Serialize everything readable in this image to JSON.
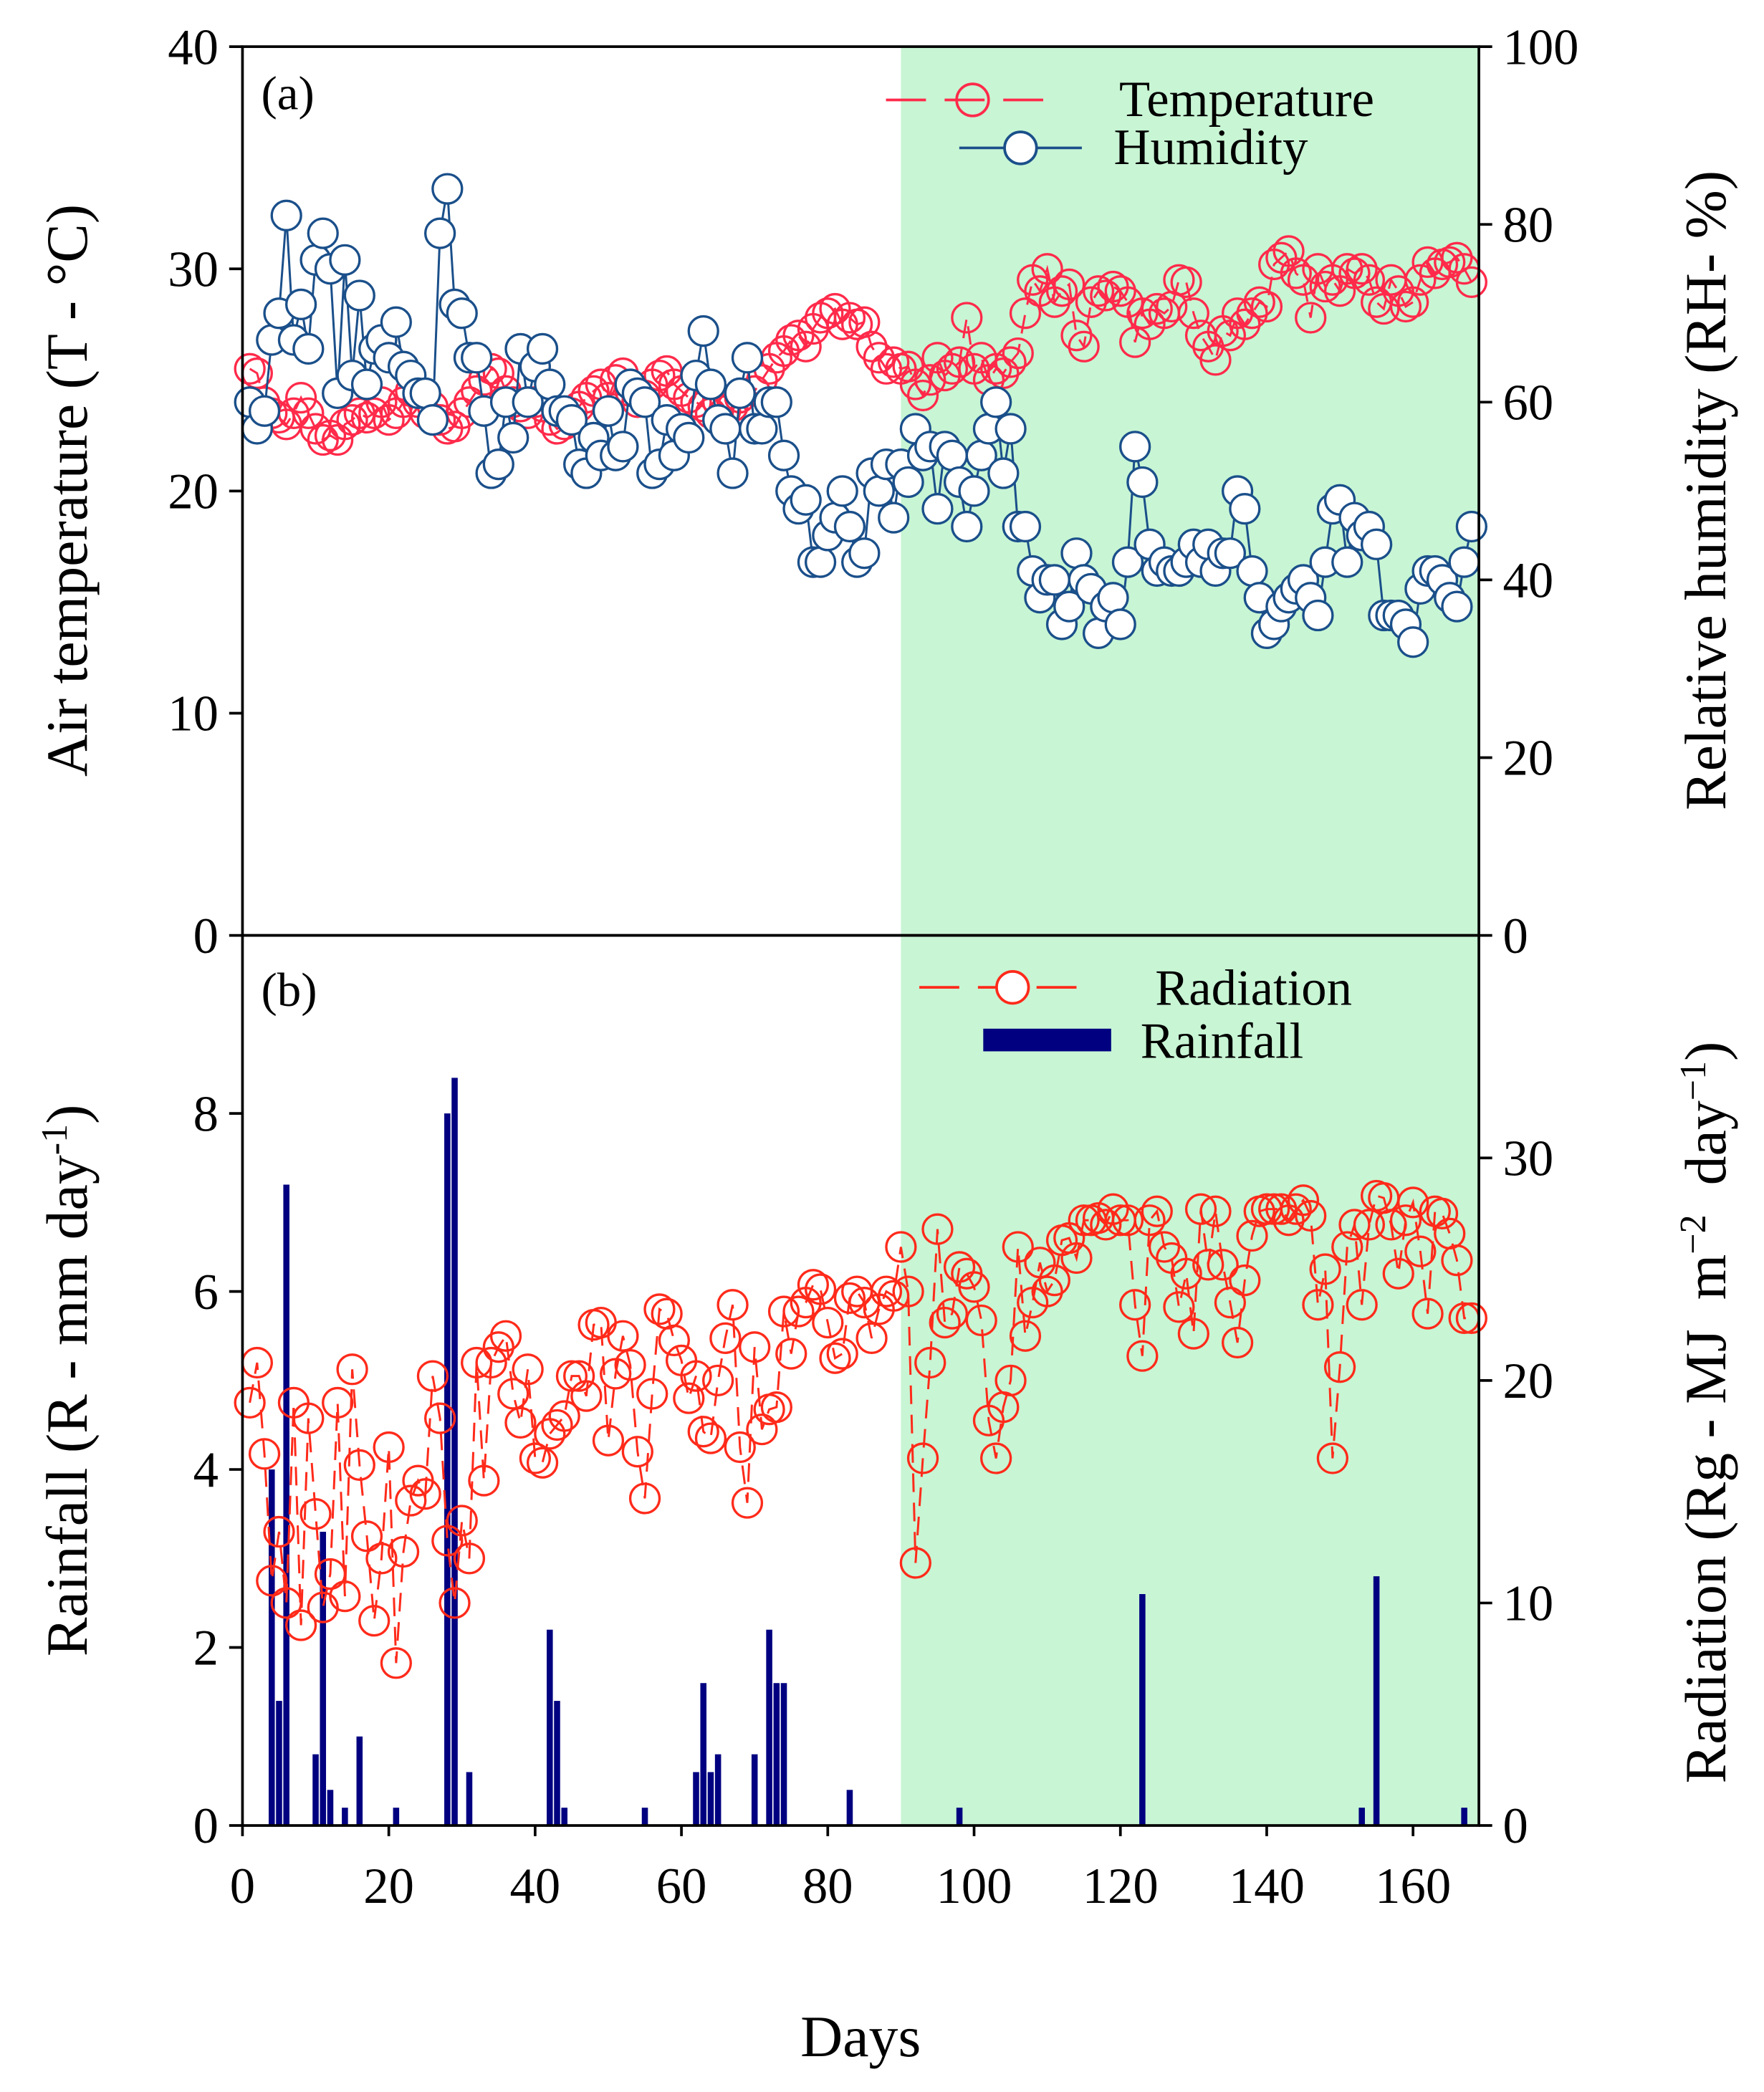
{
  "chart_data": [
    {
      "type": "line",
      "panel_label": "(a)",
      "xlabel": "Days",
      "ylabel_left": "Air temperature (T - °C)",
      "ylabel_right": "Relative humidity (RH- %)",
      "xlim": [
        0,
        169
      ],
      "ylim_left": [
        0,
        40
      ],
      "ylim_right": [
        0,
        100
      ],
      "xticks": [
        "0",
        "20",
        "40",
        "60",
        "80",
        "100",
        "120",
        "140",
        "160"
      ],
      "yticks_left": [
        "0",
        "10",
        "20",
        "30",
        "40"
      ],
      "yticks_right": [
        "0",
        "20",
        "40",
        "60",
        "80",
        "100"
      ],
      "shaded_region_days": [
        90,
        169
      ],
      "legend_position": "top-right",
      "series": [
        {
          "name": "Temperature",
          "axis": "left",
          "color": "#ff2a4a",
          "style": "dashed-open-circle",
          "values": [
            25.5,
            25.3,
            24,
            23.5,
            23.3,
            23,
            23.5,
            24.2,
            23.5,
            22.8,
            22.3,
            22.5,
            22.3,
            23,
            23.2,
            23.5,
            23.3,
            23.5,
            24,
            23.2,
            23.5,
            24,
            24.5,
            24,
            23.5,
            23.8,
            23.2,
            22.8,
            22.9,
            23.5,
            24,
            24.5,
            25,
            25.5,
            25.3,
            24.5,
            24,
            23.8,
            23.5,
            24,
            23.8,
            23.2,
            22.8,
            23,
            23.5,
            23.8,
            24.2,
            24.5,
            24.8,
            24.2,
            25,
            25.3,
            24.5,
            24,
            24.3,
            24.8,
            25.2,
            25.4,
            24.8,
            24.5,
            24.2,
            24,
            23.8,
            23.5,
            24,
            23.6,
            23.8,
            24.2,
            23.5,
            24.5,
            25,
            25.5,
            26,
            26.3,
            26.8,
            27,
            26.5,
            27.3,
            27.8,
            28,
            28.2,
            27.5,
            27.8,
            27.5,
            27.6,
            26.5,
            26,
            25.5,
            25.8,
            25.5,
            25.6,
            24.8,
            24.3,
            25,
            26,
            25.2,
            25.5,
            25.8,
            27.8,
            25.5,
            26,
            25,
            25.5,
            25.3,
            25.8,
            26.2,
            28,
            29.5,
            29,
            30,
            28.5,
            29,
            29.3,
            27,
            26.5,
            28.5,
            29,
            28.8,
            29.2,
            29,
            28.5,
            26.7,
            28,
            27.5,
            28.2,
            28,
            28.3,
            29.5,
            29.4,
            28,
            27,
            26.5,
            25.9,
            27.2,
            27,
            28,
            27.5,
            28,
            28.5,
            28.3,
            30.2,
            30.5,
            30.8,
            29.8,
            29.5,
            27.8,
            30,
            29.2,
            29.5,
            29,
            30,
            29.8,
            30,
            29.5,
            28.5,
            28.2,
            29.5,
            29,
            28.3,
            28.5,
            29.5,
            30.3,
            29.8,
            30.2,
            30.3,
            30.5,
            30,
            29.4
          ]
        },
        {
          "name": "Humidity",
          "axis": "right",
          "color": "#1a4f8a",
          "style": "solid-open-circle",
          "values": [
            60,
            57,
            59,
            67,
            70,
            81,
            67,
            71,
            66,
            76,
            79,
            75,
            61,
            76,
            63,
            72,
            62,
            66,
            67,
            65,
            69,
            64,
            63,
            61,
            61,
            58,
            79,
            84,
            71,
            70,
            65,
            65,
            59,
            52,
            53,
            60,
            56,
            66,
            60,
            64,
            66,
            62,
            59,
            59,
            58,
            53,
            52,
            56,
            54,
            59,
            54,
            55,
            62,
            61,
            60,
            52,
            53,
            58,
            54,
            57,
            56,
            63,
            68,
            62,
            58,
            57,
            52,
            61,
            65,
            57,
            57,
            60,
            60,
            54,
            50,
            48,
            49,
            42,
            42,
            45,
            47,
            50,
            46,
            42,
            43,
            52,
            50,
            53,
            47,
            53,
            51,
            57,
            54,
            55,
            48,
            55,
            54,
            51,
            46,
            50,
            54,
            57,
            60,
            52,
            57,
            46,
            46,
            41,
            38,
            40,
            40,
            35,
            37,
            43,
            40,
            39,
            34,
            37,
            38,
            35,
            42,
            55,
            51,
            44,
            41,
            42,
            41,
            41,
            42,
            44,
            42,
            44,
            41,
            43,
            43,
            50,
            48,
            41,
            38,
            34,
            35,
            37,
            38,
            39,
            40,
            38,
            36,
            42,
            48,
            49,
            42,
            47,
            45,
            46,
            44,
            36,
            36,
            36,
            35,
            33,
            39,
            41,
            41,
            40,
            38,
            37,
            42,
            46
          ]
        }
      ]
    },
    {
      "type": "bar+line",
      "panel_label": "(b)",
      "xlabel": "Days",
      "ylabel_left": {
        "main": "Rainfall (R - mm day",
        "sup": "-1",
        "close": ")"
      },
      "ylabel_right": {
        "main": "Radiation (Rg - MJ  m",
        "sup1": "−2",
        "mid": "  day",
        "sup2": "−1",
        "close": ")"
      },
      "xlim": [
        0,
        169
      ],
      "ylim_left": [
        0,
        10
      ],
      "ylim_right": [
        0,
        40
      ],
      "xticks": [
        "0",
        "20",
        "40",
        "60",
        "80",
        "100",
        "120",
        "140",
        "160"
      ],
      "yticks_left": [
        "0",
        "2",
        "4",
        "6",
        "8"
      ],
      "yticks_right": [
        "0",
        "10",
        "20",
        "30"
      ],
      "shaded_region_days": [
        90,
        169
      ],
      "legend_position": "top-right",
      "rainfall": {
        "name": "Rainfall",
        "color": "#000080",
        "days": [
          4,
          5,
          6,
          10,
          11,
          12,
          14,
          16,
          21,
          28,
          29,
          31,
          42,
          43,
          44,
          55,
          62,
          63,
          64,
          65,
          70,
          72,
          73,
          74,
          83,
          98,
          123,
          153,
          155,
          167
        ],
        "values": [
          4.0,
          1.4,
          7.2,
          0.8,
          3.3,
          0.4,
          0.2,
          1.0,
          0.2,
          8.0,
          8.4,
          0.6,
          2.2,
          1.4,
          0.2,
          0.2,
          0.6,
          1.6,
          0.6,
          0.8,
          0.8,
          2.2,
          1.6,
          1.6,
          0.4,
          0.2,
          2.6,
          0.2,
          2.8,
          0.2
        ]
      },
      "radiation": {
        "name": "Radiation",
        "color": "#ff2a1a",
        "values": [
          19,
          20.8,
          16.7,
          11,
          13.2,
          10,
          19,
          9,
          18.3,
          14,
          9.8,
          11.3,
          19,
          10.3,
          20.5,
          16.2,
          13,
          9.2,
          12,
          17,
          7.3,
          12.3,
          14.6,
          15.5,
          14.9,
          20.2,
          18.3,
          12.8,
          10,
          13.7,
          12,
          20.8,
          15.5,
          20.8,
          21.5,
          22,
          19.4,
          18.1,
          20.5,
          16.5,
          16.3,
          17.6,
          18,
          18.4,
          20.2,
          20.2,
          19.3,
          22.5,
          22.6,
          17.3,
          20.3,
          22,
          20.7,
          16.8,
          14.7,
          19.4,
          23.2,
          23,
          21.8,
          20.9,
          19.2,
          20.2,
          17.7,
          17.4,
          20,
          21.9,
          23.4,
          17,
          14.5,
          21.5,
          17.8,
          18.7,
          18.8,
          23.1,
          21.2,
          23.1,
          23.5,
          24.3,
          24.1,
          22.6,
          21,
          21.2,
          23.7,
          24,
          23.5,
          21.9,
          23.2,
          24,
          23.8,
          26,
          24,
          11.8,
          16.5,
          20.8,
          26.8,
          22.6,
          23,
          25.1,
          24.8,
          24.2,
          22.7,
          18.2,
          16.5,
          18.8,
          20,
          26,
          22,
          23.5,
          25.3,
          24,
          24.5,
          26.3,
          26.4,
          25.5,
          27.2,
          27.2,
          27.3,
          27,
          27.7,
          27.2,
          27.2,
          23.4,
          21.1,
          27.2,
          27.6,
          26,
          25.5,
          23.3,
          24.8,
          22.1,
          27.7,
          25.2,
          27.6,
          25.2,
          23.5,
          21.7,
          24.5,
          26.5,
          27.6,
          27.7,
          27.7,
          27.7,
          27.2,
          27.7,
          28.1,
          27.4,
          23.4,
          25,
          16.5,
          20.6,
          26,
          27,
          23.4,
          27,
          28.3,
          28.2,
          27,
          24.8,
          27.2,
          28,
          25.8,
          23,
          27.6,
          27.5,
          26.6,
          25.4,
          22.8,
          22.8
        ]
      }
    }
  ],
  "colors": {
    "shade": "#c8f5d4",
    "temperature": "#ff2a4a",
    "humidity": "#1a4f8a",
    "radiation": "#ff2a1a",
    "rainfall": "#000080"
  }
}
